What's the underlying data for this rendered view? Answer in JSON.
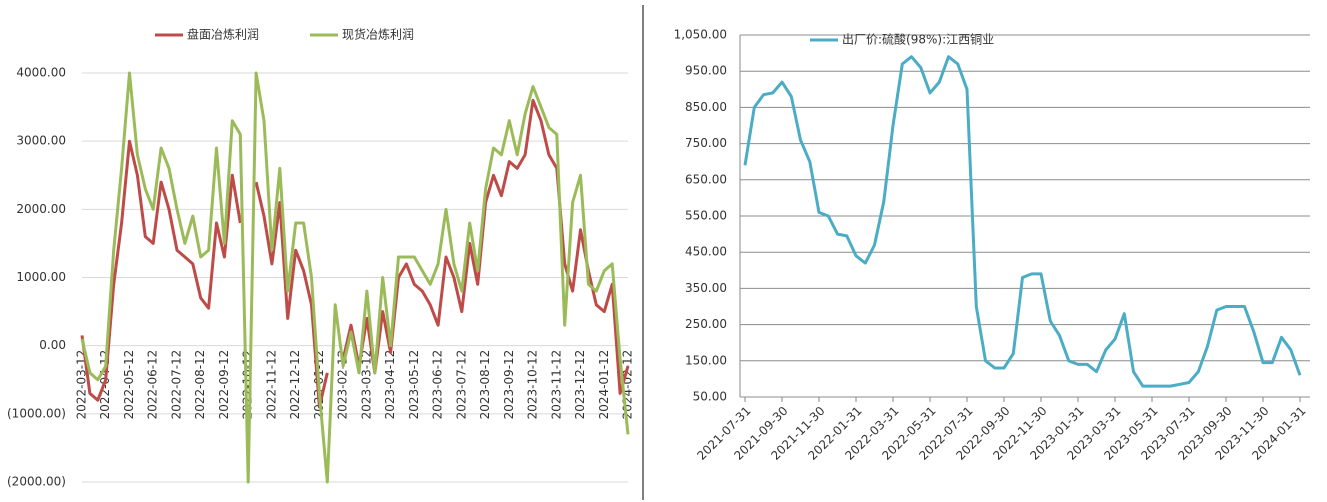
{
  "chart_data": [
    {
      "type": "line",
      "categories": [
        "2022-03-12",
        null,
        null,
        "2022-04-12",
        null,
        null,
        "2022-05-12",
        null,
        null,
        "2022-06-12",
        null,
        null,
        "2022-07-12",
        null,
        null,
        "2022-08-12",
        null,
        null,
        "2022-09-12",
        null,
        null,
        "2022-10-12",
        null,
        null,
        "2022-11-12",
        null,
        null,
        "2022-12-12",
        null,
        null,
        "2023-01-12",
        null,
        null,
        "2023-02-12",
        null,
        null,
        "2023-03-12",
        null,
        null,
        "2023-04-12",
        null,
        null,
        "2023-05-12",
        null,
        null,
        "2023-06-12",
        null,
        null,
        "2023-07-12",
        null,
        null,
        "2023-08-12",
        null,
        null,
        "2023-09-12",
        null,
        null,
        "2023-10-12",
        null,
        null,
        "2023-11-12",
        null,
        null,
        "2023-12-12",
        null,
        null,
        "2024-01-12",
        null,
        null,
        "2024-02-12"
      ],
      "series": [
        {
          "name": "盘面冶炼利润",
          "color": "#be4b48",
          "values": [
            150,
            -700,
            -800,
            -500,
            900,
            1800,
            3000,
            2500,
            1600,
            1500,
            2400,
            2000,
            1400,
            1300,
            1200,
            700,
            550,
            1800,
            1300,
            2500,
            1800,
            null,
            2400,
            1900,
            1200,
            2100,
            400,
            1400,
            1100,
            600,
            -900,
            -400,
            null,
            -200,
            300,
            -300,
            400,
            -400,
            500,
            -100,
            1000,
            1200,
            900,
            800,
            600,
            300,
            1300,
            1000,
            500,
            1500,
            900,
            2100,
            2500,
            2200,
            2700,
            2600,
            2800,
            3600,
            3300,
            2800,
            2600,
            1200,
            800,
            1700,
            1100,
            600,
            500,
            900,
            -700,
            -300
          ]
        },
        {
          "name": "现货冶炼利润",
          "color": "#9bbb59",
          "values": [
            100,
            -400,
            -500,
            -300,
            1400,
            2600,
            4000,
            2800,
            2300,
            2000,
            2900,
            2600,
            2000,
            1500,
            1900,
            1300,
            1400,
            2900,
            1500,
            3300,
            3100,
            -2000,
            4000,
            3300,
            1400,
            2600,
            800,
            1800,
            1800,
            1000,
            -700,
            -2000,
            600,
            -300,
            200,
            -400,
            800,
            -400,
            1000,
            0,
            1300,
            1300,
            1300,
            1100,
            900,
            1200,
            2000,
            1200,
            800,
            1800,
            1100,
            2300,
            2900,
            2800,
            3300,
            2800,
            3400,
            3800,
            3500,
            3200,
            3100,
            300,
            2100,
            2500,
            900,
            800,
            1100,
            1200,
            -200,
            -1300
          ]
        }
      ],
      "ylim": [
        -2000,
        4000
      ],
      "yticks": [
        {
          "value": -2000,
          "label": "(2000.00)"
        },
        {
          "value": -1000,
          "label": "(1000.00)"
        },
        {
          "value": 0,
          "label": "0.00"
        },
        {
          "value": 1000,
          "label": "1000.00"
        },
        {
          "value": 2000,
          "label": "2000.00"
        },
        {
          "value": 3000,
          "label": "3000.00"
        },
        {
          "value": 4000,
          "label": "4000.00"
        }
      ],
      "grid": true,
      "legend": "top"
    },
    {
      "type": "line",
      "categories": [
        "2021-07-31",
        null,
        null,
        null,
        "2021-09-30",
        null,
        null,
        null,
        "2021-11-30",
        null,
        null,
        null,
        "2022-01-31",
        null,
        null,
        null,
        "2022-03-31",
        null,
        null,
        null,
        "2022-05-31",
        null,
        null,
        null,
        "2022-07-31",
        null,
        null,
        null,
        "2022-09-30",
        null,
        null,
        null,
        "2022-11-30",
        null,
        null,
        null,
        "2023-01-31",
        null,
        null,
        null,
        "2023-03-31",
        null,
        null,
        null,
        "2023-05-31",
        null,
        null,
        null,
        "2023-07-31",
        null,
        null,
        null,
        "2023-09-30",
        null,
        null,
        null,
        "2023-11-30",
        null,
        null,
        null,
        "2024-01-31"
      ],
      "series": [
        {
          "name": "出厂价:硫酸(98%):江西铜业",
          "color": "#4bacc6",
          "values": [
            690,
            850,
            885,
            890,
            920,
            880,
            760,
            700,
            560,
            550,
            500,
            495,
            440,
            420,
            470,
            590,
            800,
            970,
            990,
            960,
            890,
            920,
            990,
            970,
            900,
            300,
            150,
            130,
            130,
            170,
            380,
            390,
            390,
            260,
            220,
            150,
            140,
            140,
            120,
            180,
            210,
            280,
            120,
            80,
            80,
            80,
            80,
            85,
            90,
            120,
            190,
            290,
            300,
            300,
            300,
            230,
            145,
            145,
            215,
            180,
            110
          ]
        }
      ],
      "ylim": [
        50,
        1050
      ],
      "yticks": [
        {
          "value": 50,
          "label": "50.00"
        },
        {
          "value": 150,
          "label": "150.00"
        },
        {
          "value": 250,
          "label": "250.00"
        },
        {
          "value": 350,
          "label": "350.00"
        },
        {
          "value": 450,
          "label": "450.00"
        },
        {
          "value": 550,
          "label": "550.00"
        },
        {
          "value": 650,
          "label": "650.00"
        },
        {
          "value": 750,
          "label": "750.00"
        },
        {
          "value": 850,
          "label": "850.00"
        },
        {
          "value": 950,
          "label": "950.00"
        },
        {
          "value": 1050,
          "label": "1,050.00"
        }
      ],
      "grid": true,
      "legend": "top-left"
    }
  ]
}
